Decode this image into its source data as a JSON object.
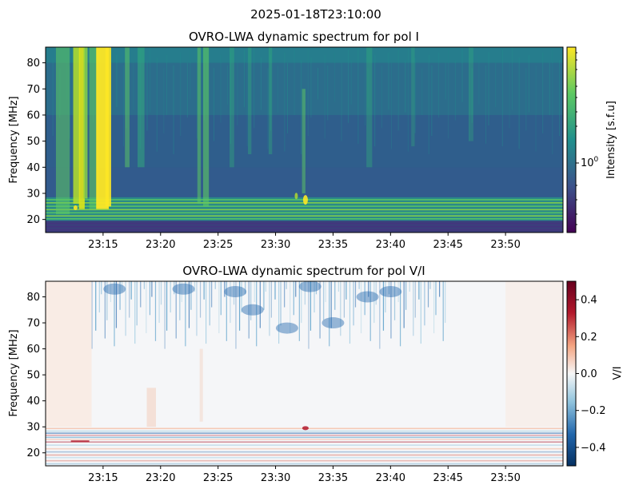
{
  "figure": {
    "suptitle": "2025-01-18T23:10:00"
  },
  "chart_data": [
    {
      "type": "heatmap",
      "title": "OVRO-LWA dynamic spectrum for pol I",
      "xlabel": "",
      "ylabel": "Frequency [MHz]",
      "x_ticks": [
        "23:15",
        "23:20",
        "23:25",
        "23:30",
        "23:35",
        "23:40",
        "23:45",
        "23:50"
      ],
      "y_ticks": [
        20,
        30,
        40,
        50,
        60,
        70,
        80
      ],
      "xlim": [
        "23:10",
        "23:55"
      ],
      "ylim": [
        15,
        86
      ],
      "colormap": "viridis",
      "colorbar": {
        "label": "Intensity [s.f.u]",
        "scale": "log",
        "tick_label": "10^0",
        "tick_value": 1
      },
      "features": {
        "type_iii_bursts_times": [
          "23:12.5",
          "23:13.5",
          "23:14.5",
          "23:15",
          "23:23.5",
          "23:32",
          "23:33.5"
        ],
        "bright_band_MHz": [
          20,
          28
        ],
        "dark_band_MHz": [
          15,
          19
        ]
      }
    },
    {
      "type": "heatmap",
      "title": "OVRO-LWA dynamic spectrum for pol V/I",
      "xlabel": "",
      "ylabel": "Frequency [MHz]",
      "x_ticks": [
        "23:15",
        "23:20",
        "23:25",
        "23:30",
        "23:35",
        "23:40",
        "23:45",
        "23:50"
      ],
      "y_ticks": [
        20,
        30,
        40,
        50,
        60,
        70,
        80
      ],
      "xlim": [
        "23:10",
        "23:55"
      ],
      "ylim": [
        15,
        86
      ],
      "colormap": "RdBu_r",
      "colorbar": {
        "label": "V/I",
        "scale": "linear",
        "range": [
          -0.5,
          0.5
        ],
        "ticks": [
          -0.4,
          -0.2,
          0.0,
          0.2,
          0.4
        ]
      }
    }
  ],
  "colors": {
    "viridis": [
      "#440154",
      "#3b528b",
      "#21908d",
      "#5dc962",
      "#fde725"
    ],
    "rdbu": [
      "#053061",
      "#2166ac",
      "#92c5de",
      "#f7f7f7",
      "#f4a582",
      "#b2182b",
      "#67001f"
    ]
  }
}
